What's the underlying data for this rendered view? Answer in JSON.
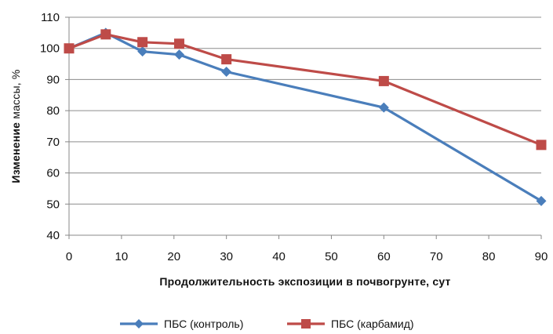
{
  "chart_data": {
    "type": "line",
    "xlabel": "Продолжительность  экспозиции  в почвогрунте, сут",
    "ylabel_bold": "Изменение",
    "ylabel_rest": " массы, %",
    "xlim": [
      0,
      90
    ],
    "ylim": [
      40,
      110
    ],
    "x_ticks": [
      "0",
      "10",
      "20",
      "30",
      "40",
      "50",
      "60",
      "70",
      "80",
      "90"
    ],
    "y_ticks": [
      "40",
      "50",
      "60",
      "70",
      "80",
      "90",
      "100",
      "110"
    ],
    "grid": true,
    "legend_position": "bottom",
    "series": [
      {
        "name": "ПБС (контроль)",
        "color": "#4a7ebb",
        "marker": "diamond",
        "points": [
          [
            0,
            100
          ],
          [
            7,
            105
          ],
          [
            14,
            99
          ],
          [
            21,
            98
          ],
          [
            30,
            92.5
          ],
          [
            60,
            81
          ],
          [
            90,
            51
          ]
        ]
      },
      {
        "name": "ПБС (карбамид)",
        "color": "#be4b48",
        "marker": "square",
        "points": [
          [
            0,
            100
          ],
          [
            7,
            104.5
          ],
          [
            14,
            102
          ],
          [
            21,
            101.5
          ],
          [
            30,
            96.5
          ],
          [
            60,
            89.5
          ],
          [
            90,
            69
          ]
        ]
      }
    ]
  }
}
